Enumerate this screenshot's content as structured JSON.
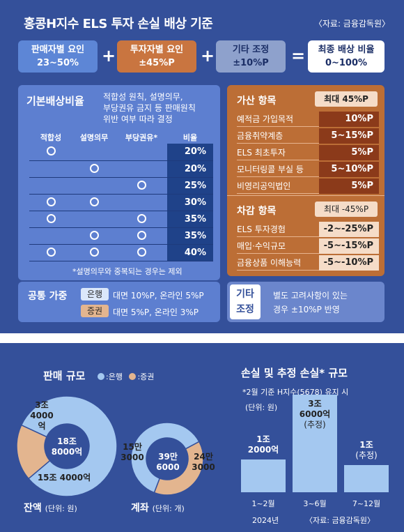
{
  "header": {
    "title": "홍콩H지수 ELS 투자 손실 배상 기준",
    "source": "〈자료: 금융감독원〉"
  },
  "formula": {
    "seller": {
      "label": "판매자별 요인",
      "value": "23~50%"
    },
    "investor": {
      "label": "투자자별 요인",
      "value": "±45%P"
    },
    "other": {
      "label": "기타 조정",
      "value": "±10%P"
    },
    "result": {
      "label": "최종 배상 비율",
      "value": "0~100%"
    },
    "plus": "+",
    "equals": "="
  },
  "basic": {
    "title": "기본배상비율",
    "desc": [
      "적합성 원칙, 설명의무,",
      "부당권유 금지 등 판매원칙",
      "위반 여부 따라 결정"
    ],
    "columns": [
      "적합성",
      "설명의무",
      "부당권유*",
      "비율"
    ],
    "rows": [
      {
        "c": [
          true,
          false,
          false
        ],
        "rate": "20%"
      },
      {
        "c": [
          false,
          true,
          false
        ],
        "rate": "20%"
      },
      {
        "c": [
          false,
          false,
          true
        ],
        "rate": "25%"
      },
      {
        "c": [
          true,
          true,
          false
        ],
        "rate": "30%"
      },
      {
        "c": [
          true,
          false,
          true
        ],
        "rate": "35%"
      },
      {
        "c": [
          false,
          true,
          true
        ],
        "rate": "35%"
      },
      {
        "c": [
          true,
          true,
          true
        ],
        "rate": "40%"
      }
    ],
    "footnote": "*설명의무와 중복되는 경우는 제외"
  },
  "add": {
    "title": "가산 항목",
    "cap": "최대 45%P",
    "items": [
      {
        "label": "예적금 가입목적",
        "value": "10%P"
      },
      {
        "label": "금융취약계층",
        "value": "5~15%P"
      },
      {
        "label": "ELS 최초투자",
        "value": "5%P"
      },
      {
        "label": "모니터링콜 부실 등",
        "value": "5~10%P"
      },
      {
        "label": "비영리공익법인",
        "value": "5%P"
      }
    ]
  },
  "sub": {
    "title": "차감 항목",
    "cap": "최대 -45%P",
    "items": [
      {
        "label": "ELS 투자경험",
        "value": "-2~-25%P"
      },
      {
        "label": "매입·수익규모",
        "value": "-5~-15%P"
      },
      {
        "label": "금융상품 이해능력",
        "value": "-5~-10%P"
      }
    ]
  },
  "common": {
    "title": "공통 가중",
    "bank_tag": "은행",
    "bank_text": "대면 10%P, 온라인 5%P",
    "sec_tag": "증권",
    "sec_text": "대면 5%P, 온라인 3%P"
  },
  "other_adj": {
    "title_1": "기타",
    "title_2": "조정",
    "text_1": "별도 고려사항이 있는",
    "text_2": "경우 ±10%P 반영"
  },
  "sales": {
    "title": "판매 규모",
    "legend_bank": ":은행",
    "legend_sec": ":증권",
    "balance": {
      "center_1": "18조",
      "center_2": "8000억",
      "bank_1": "15조 4000억",
      "sec_1": "3조",
      "sec_2": "4000억",
      "caption": "잔액",
      "unit": "(단위: 원)"
    },
    "accounts": {
      "center_1": "39만",
      "center_2": "6000",
      "bank_1": "24만",
      "bank_2": "3000",
      "sec_1": "15만",
      "sec_2": "3000",
      "caption": "계좌",
      "unit": "(단위: 개)"
    },
    "colors": {
      "bank": "#a4c8f0",
      "sec": "#e3b58f"
    }
  },
  "loss": {
    "title": "손실 및 추정 손실* 규모",
    "note": "*2월 기준 H지수(5678) 유지 시",
    "unit": "(단위: 원)",
    "year": "2024년",
    "source": "〈자료: 금융감독원〉"
  },
  "chart_data": [
    {
      "type": "pie",
      "title": "잔액",
      "categories": [
        "은행",
        "증권"
      ],
      "values": [
        154000,
        34000
      ],
      "unit": "억원"
    },
    {
      "type": "pie",
      "title": "계좌",
      "categories": [
        "은행",
        "증권"
      ],
      "values": [
        243000,
        153000
      ],
      "unit": "개"
    },
    {
      "type": "bar",
      "title": "손실 및 추정 손실* 규모",
      "categories": [
        "1~2월",
        "3~6월",
        "7~12월"
      ],
      "values": [
        12000,
        36000,
        10000
      ],
      "value_labels": [
        [
          "1조",
          "2000억"
        ],
        [
          "3조",
          "6000억",
          "(추정)"
        ],
        [
          "1조",
          "(추정)"
        ]
      ],
      "unit": "억원"
    }
  ]
}
